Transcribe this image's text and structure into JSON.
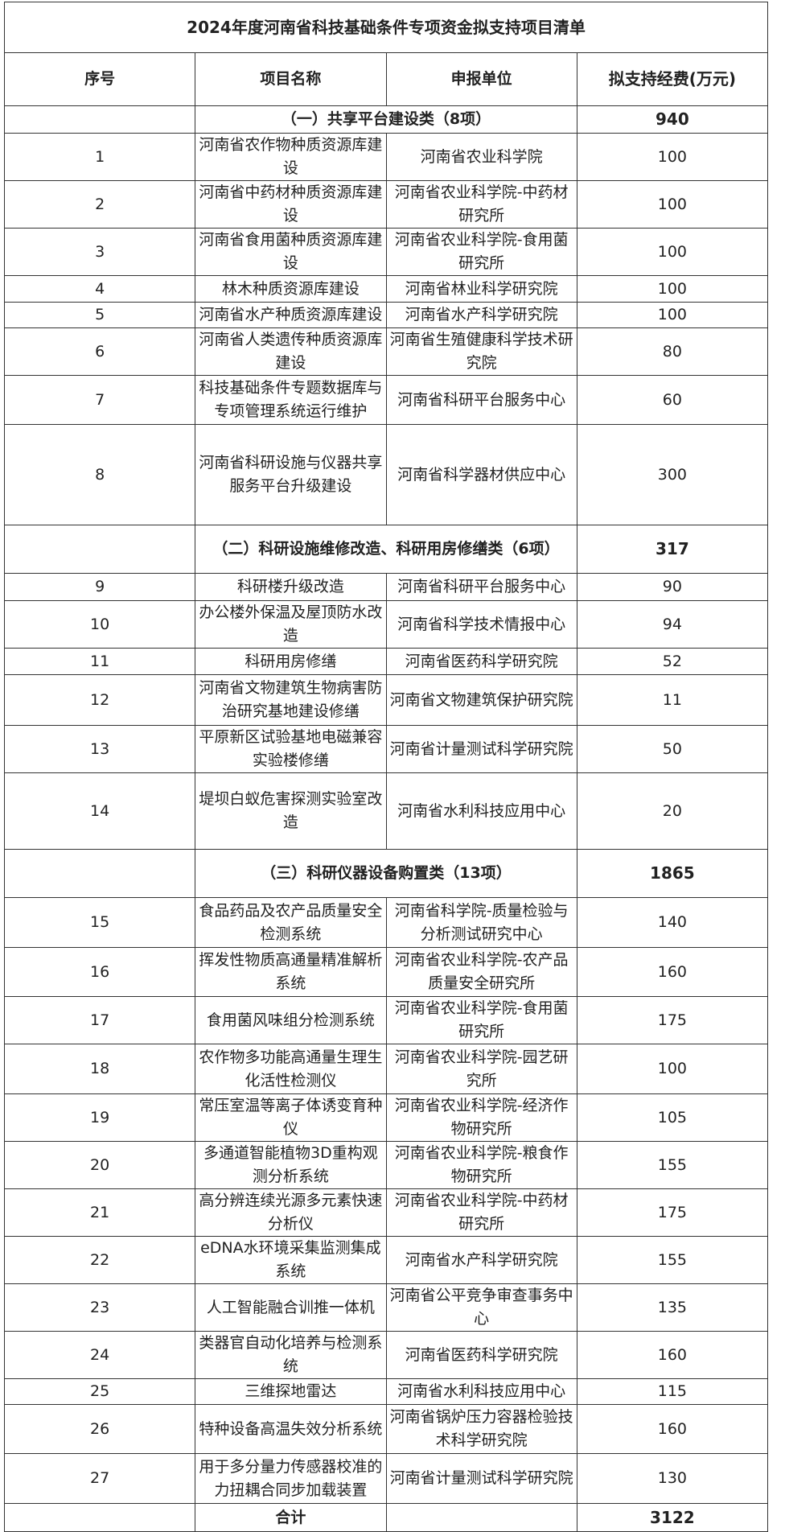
{
  "title": "2024年度河南省科技基础条件专项资金拟支持项目清单",
  "headers": [
    "序号",
    "项目名称",
    "申报单位",
    "拟支持经费(万元)"
  ],
  "rows": [
    {
      "type": "section",
      "label": "（一）共享平台建设类（8项）",
      "amount": "940"
    },
    {
      "type": "item",
      "no": "1",
      "name": "河南省农作物种质资源库建设",
      "unit": "河南省农业科学院",
      "amount": "100"
    },
    {
      "type": "item",
      "no": "2",
      "name": "河南省中药材种质资源库建设",
      "unit": "河南省农业科学院-中药材研究所",
      "amount": "100"
    },
    {
      "type": "item",
      "no": "3",
      "name": "河南省食用菌种质资源库建设",
      "unit": "河南省农业科学院-食用菌研究所",
      "amount": "100"
    },
    {
      "type": "item",
      "no": "4",
      "name": "林木种质资源库建设",
      "unit": "河南省林业科学研究院",
      "amount": "100"
    },
    {
      "type": "item",
      "no": "5",
      "name": "河南省水产种质资源库建设",
      "unit": "河南省水产科学研究院",
      "amount": "100"
    },
    {
      "type": "item",
      "no": "6",
      "name": "河南省人类遗传种质资源库建设",
      "unit": "河南省生殖健康科学技术研究院",
      "amount": "80"
    },
    {
      "type": "item",
      "no": "7",
      "name": "科技基础条件专题数据库与专项管理系统运行维护",
      "unit": "河南省科研平台服务中心",
      "amount": "60"
    },
    {
      "type": "item",
      "no": "8",
      "name": "河南省科研设施与仪器共享服务平台升级建设",
      "unit": "河南省科学器材供应中心",
      "amount": "300"
    },
    {
      "type": "section",
      "label": "（二）科研设施维修改造、科研用房修缮类（6项）",
      "amount": "317"
    },
    {
      "type": "item",
      "no": "9",
      "name": "科研楼升级改造",
      "unit": "河南省科研平台服务中心",
      "amount": "90"
    },
    {
      "type": "item",
      "no": "10",
      "name": "办公楼外保温及屋顶防水改造",
      "unit": "河南省科学技术情报中心",
      "amount": "94"
    },
    {
      "type": "item",
      "no": "11",
      "name": "科研用房修缮",
      "unit": "河南省医药科学研究院",
      "amount": "52"
    },
    {
      "type": "item",
      "no": "12",
      "name": "河南省文物建筑生物病害防治研究基地建设修缮",
      "unit": "河南省文物建筑保护研究院",
      "amount": "11"
    },
    {
      "type": "item",
      "no": "13",
      "name": "平原新区试验基地电磁兼容实验楼修缮",
      "unit": "河南省计量测试科学研究院",
      "amount": "50"
    },
    {
      "type": "item",
      "no": "14",
      "name": "堤坝白蚁危害探测实验室改造",
      "unit": "河南省水利科技应用中心",
      "amount": "20"
    },
    {
      "type": "section",
      "label": "（三）科研仪器设备购置类（13项）",
      "amount": "1865"
    },
    {
      "type": "item",
      "no": "15",
      "name": "食品药品及农产品质量安全检测系统",
      "unit": "河南省科学院-质量检验与分析测试研究中心",
      "amount": "140"
    },
    {
      "type": "item",
      "no": "16",
      "name": "挥发性物质高通量精准解析系统",
      "unit": "河南省农业科学院-农产品质量安全研究所",
      "amount": "160"
    },
    {
      "type": "item",
      "no": "17",
      "name": "食用菌风味组分检测系统",
      "unit": "河南省农业科学院-食用菌研究所",
      "amount": "175"
    },
    {
      "type": "item",
      "no": "18",
      "name": "农作物多功能高通量生理生化活性检测仪",
      "unit": "河南省农业科学院-园艺研究所",
      "amount": "100"
    },
    {
      "type": "item",
      "no": "19",
      "name": "常压室温等离子体诱变育种仪",
      "unit": "河南省农业科学院-经济作物研究所",
      "amount": "105"
    },
    {
      "type": "item",
      "no": "20",
      "name": "多通道智能植物3D重构观测分析系统",
      "unit": "河南省农业科学院-粮食作物研究所",
      "amount": "155"
    },
    {
      "type": "item",
      "no": "21",
      "name": "高分辨连续光源多元素快速分析仪",
      "unit": "河南省农业科学院-中药材研究所",
      "amount": "175"
    },
    {
      "type": "item",
      "no": "22",
      "name": "eDNA水环境采集监测集成系统",
      "unit": "河南省水产科学研究院",
      "amount": "155"
    },
    {
      "type": "item",
      "no": "23",
      "name": "人工智能融合训推一体机",
      "unit": "河南省公平竞争审查事务中心",
      "amount": "135"
    },
    {
      "type": "item",
      "no": "24",
      "name": "类器官自动化培养与检测系统",
      "unit": "河南省医药科学研究院",
      "amount": "160"
    },
    {
      "type": "item",
      "no": "25",
      "name": "三维探地雷达",
      "unit": "河南省水利科技应用中心",
      "amount": "115"
    },
    {
      "type": "item",
      "no": "26",
      "name": "特种设备高温失效分析系统",
      "unit": "河南省锅炉压力容器检验技术科学研究院",
      "amount": "160"
    },
    {
      "type": "item",
      "no": "27",
      "name": "用于多分量力传感器校准的力扭耦合同步加载装置",
      "unit": "河南省计量测试科学研究院",
      "amount": "130"
    },
    {
      "type": "total",
      "label": "合计",
      "amount": "3122"
    }
  ]
}
